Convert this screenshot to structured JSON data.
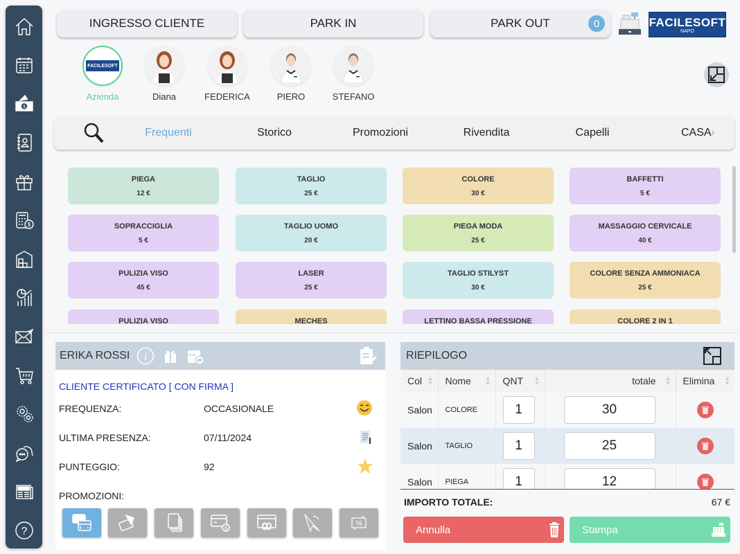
{
  "sidebar": {
    "items": [
      {
        "icon": "home-icon",
        "label": "Home"
      },
      {
        "icon": "calendar-icon",
        "label": "Agenda"
      },
      {
        "icon": "cash-icon",
        "label": "Cassa"
      },
      {
        "icon": "address-book-icon",
        "label": "Rubrica"
      },
      {
        "icon": "gift-icon",
        "label": "Regali"
      },
      {
        "icon": "calculator-money-icon",
        "label": "Contabilità"
      },
      {
        "icon": "warehouse-icon",
        "label": "Magazzino"
      },
      {
        "icon": "analytics-icon",
        "label": "Statistiche"
      },
      {
        "icon": "mail-icon",
        "label": "Messaggi"
      },
      {
        "icon": "cart-icon",
        "label": "Acquisti"
      },
      {
        "icon": "gears-icon",
        "label": "Impostazioni"
      },
      {
        "icon": "chat-icon",
        "label": "Chat"
      },
      {
        "icon": "news-icon",
        "label": "News"
      },
      {
        "icon": "help-icon",
        "label": "Aiuto"
      }
    ]
  },
  "header": {
    "ingresso_label": "INGRESSO CLIENTE",
    "park_in_label": "PARK IN",
    "park_out_label": "PARK OUT",
    "park_out_count": "0",
    "logo_main": "FACILESOFT",
    "logo_sub": "NAPO"
  },
  "operators": [
    {
      "name": "Azienda",
      "selected": true
    },
    {
      "name": "Diana",
      "selected": false
    },
    {
      "name": "FEDERICA",
      "selected": false
    },
    {
      "name": "PIERO",
      "selected": false
    },
    {
      "name": "STEFANO",
      "selected": false
    }
  ],
  "tabs": [
    "Frequenti",
    "Storico",
    "Promozioni",
    "Rivendita",
    "Capelli",
    "CASA"
  ],
  "active_tab": "Frequenti",
  "colors": {
    "green": "#cce6da",
    "cyan": "#cce9ec",
    "orange": "#f1ddb0",
    "purple": "#e3d0f5",
    "lime": "#d6eab8",
    "accent_blue": "#6aa9d6",
    "selected_green": "#5ad39a",
    "cancel_red": "#e96566",
    "print_green": "#74dcae",
    "sidebar": "#344a5e"
  },
  "services": [
    {
      "name": "PIEGA",
      "price": "12 €",
      "color": "green"
    },
    {
      "name": "TAGLIO",
      "price": "25 €",
      "color": "cyan"
    },
    {
      "name": "COLORE",
      "price": "30 €",
      "color": "orange"
    },
    {
      "name": "BAFFETTI",
      "price": "5 €",
      "color": "purple"
    },
    {
      "name": "SOPRACCIGLIA",
      "price": "5 €",
      "color": "purple"
    },
    {
      "name": "TAGLIO UOMO",
      "price": "20 €",
      "color": "cyan"
    },
    {
      "name": "PIEGA MODA",
      "price": "25 €",
      "color": "lime"
    },
    {
      "name": "MASSAGGIO CERVICALE",
      "price": "40 €",
      "color": "purple"
    },
    {
      "name": "PULIZIA VISO",
      "price": "45 €",
      "color": "purple"
    },
    {
      "name": "LASER",
      "price": "25 €",
      "color": "purple"
    },
    {
      "name": "TAGLIO STILYST",
      "price": "30 €",
      "color": "cyan"
    },
    {
      "name": "COLORE SENZA AMMONIACA",
      "price": "25 €",
      "color": "orange"
    },
    {
      "name": "PULIZIA VISO",
      "price": "",
      "color": "purple"
    },
    {
      "name": "MECHES",
      "price": "",
      "color": "orange"
    },
    {
      "name": "LETTINO BASSA PRESSIONE",
      "price": "",
      "color": "purple"
    },
    {
      "name": "COLORE 2 IN 1",
      "price": "",
      "color": "orange"
    }
  ],
  "client": {
    "name": "ERIKA ROSSI",
    "certified": "CLIENTE CERTIFICATO [ CON FIRMA ]",
    "frequenza_label": "FREQUENZA:",
    "frequenza_value": "OCCASIONALE",
    "ultima_label": "ULTIMA PRESENZA:",
    "ultima_value": "07/11/2024",
    "punteggio_label": "PUNTEGGIO:",
    "punteggio_value": "92",
    "promozioni_label": "PROMOZIONI:",
    "promo_icons": [
      "cards-icon",
      "card-hand-icon",
      "pages-icon",
      "card-coins-icon",
      "infinite-card-icon",
      "cursor-icon",
      "percent-swap-icon"
    ]
  },
  "summary": {
    "title": "RIEPILOGO",
    "columns": [
      "Col",
      "Nome",
      "QNT",
      "totale",
      "Elimina"
    ],
    "rows": [
      {
        "col": "Salon",
        "nome": "COLORE",
        "qnt": "1",
        "totale": "30"
      },
      {
        "col": "Salon",
        "nome": "TAGLIO",
        "qnt": "1",
        "totale": "25"
      },
      {
        "col": "Salon",
        "nome": "PIEGA",
        "qnt": "1",
        "totale": "12"
      }
    ],
    "total_label": "IMPORTO TOTALE:",
    "total_value": "67 €",
    "cancel_label": "Annulla",
    "print_label": "Stampa"
  }
}
